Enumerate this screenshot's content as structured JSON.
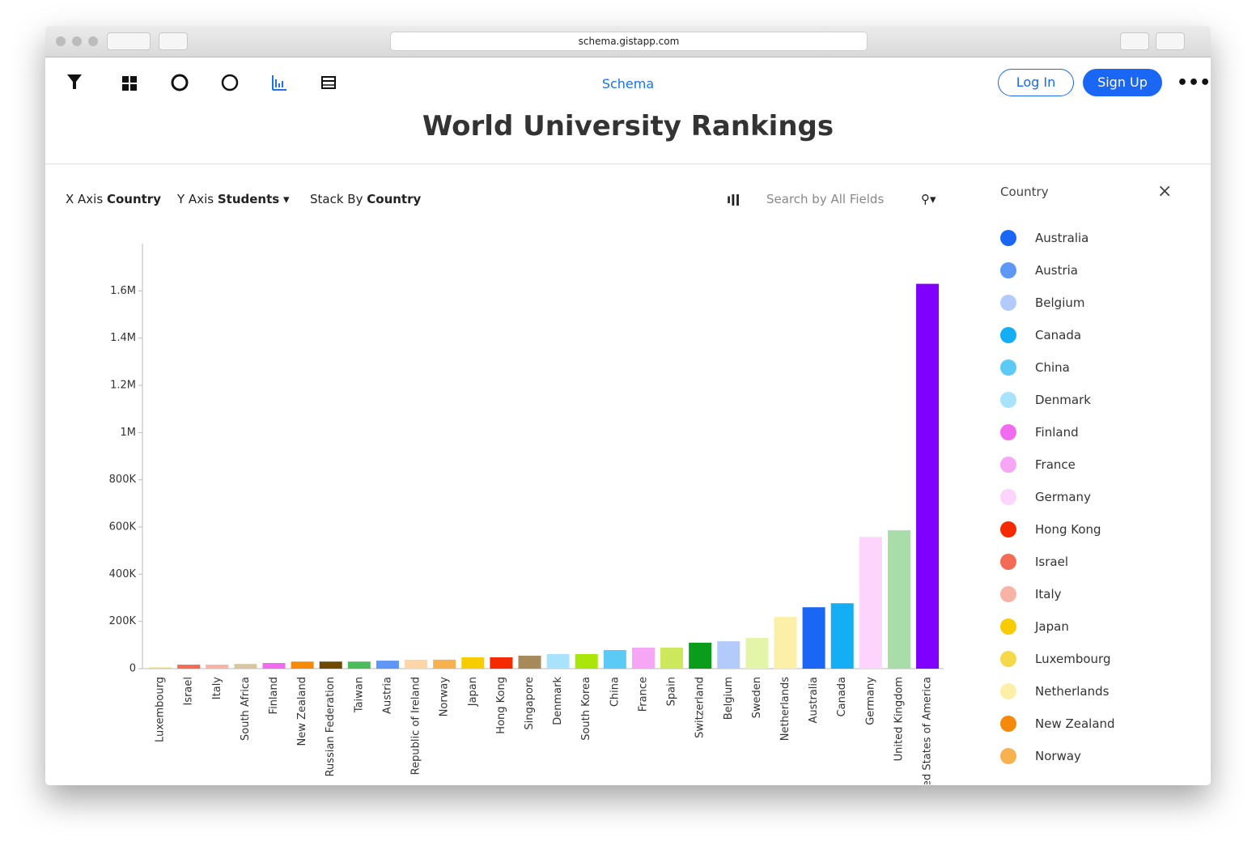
{
  "browser": {
    "url": "schema.gistapp.com"
  },
  "nav": {
    "brand": "Schema",
    "login": "Log In",
    "signup": "Sign Up"
  },
  "title": "World University Rankings",
  "controls": {
    "x_axis_label": "X Axis",
    "x_axis_value": "Country",
    "y_axis_label": "Y Axis",
    "y_axis_value": "Students",
    "stack_label": "Stack By",
    "stack_value": "Country",
    "search_placeholder": "Search by All Fields"
  },
  "legend": {
    "title": "Country",
    "items": [
      {
        "name": "Australia",
        "color": "#1a66f5"
      },
      {
        "name": "Austria",
        "color": "#5e97f5"
      },
      {
        "name": "Belgium",
        "color": "#b3cbfa"
      },
      {
        "name": "Canada",
        "color": "#14aef5"
      },
      {
        "name": "China",
        "color": "#5ccaf5"
      },
      {
        "name": "Denmark",
        "color": "#a9e3fb"
      },
      {
        "name": "Finland",
        "color": "#f06bf0"
      },
      {
        "name": "France",
        "color": "#f7a6f5"
      },
      {
        "name": "Germany",
        "color": "#fcd4fc"
      },
      {
        "name": "Hong Kong",
        "color": "#f52a00"
      },
      {
        "name": "Israel",
        "color": "#f26b55"
      },
      {
        "name": "Italy",
        "color": "#f7b4a6"
      },
      {
        "name": "Japan",
        "color": "#f7cc00"
      },
      {
        "name": "Luxembourg",
        "color": "#f5d94a"
      },
      {
        "name": "Netherlands",
        "color": "#fcefa8"
      },
      {
        "name": "New Zealand",
        "color": "#f5890b"
      },
      {
        "name": "Norway",
        "color": "#f7b14f"
      }
    ]
  },
  "chart_data": {
    "type": "bar",
    "categories": [
      "Luxembourg",
      "Israel",
      "Italy",
      "South Africa",
      "Finland",
      "New Zealand",
      "Russian Federation",
      "Taiwan",
      "Austria",
      "Republic of Ireland",
      "Norway",
      "Japan",
      "Hong Kong",
      "Singapore",
      "Denmark",
      "South Korea",
      "China",
      "France",
      "Spain",
      "Switzerland",
      "Belgium",
      "Sweden",
      "Netherlands",
      "Australia",
      "Canada",
      "Germany",
      "United Kingdom",
      "United States of America"
    ],
    "values": [
      5000,
      17000,
      17000,
      20000,
      24000,
      30000,
      30000,
      30000,
      34000,
      38000,
      38000,
      48000,
      48000,
      55000,
      62000,
      62000,
      79000,
      89000,
      89000,
      110000,
      116000,
      130000,
      219000,
      260000,
      277000,
      558000,
      586000,
      1630000
    ],
    "colors": [
      "#f5d94a",
      "#f26b55",
      "#f7b4a6",
      "#d6c7a0",
      "#f06bf0",
      "#f5890b",
      "#6e4a00",
      "#4dba5c",
      "#5e97f5",
      "#fdd6a8",
      "#f7b14f",
      "#f7cc00",
      "#f52a00",
      "#a68a5a",
      "#a9e3fb",
      "#abe60a",
      "#5ccaf5",
      "#f7a6f5",
      "#cde85a",
      "#0a9c1a",
      "#b3cbfa",
      "#e3f5a8",
      "#fcefa8",
      "#1a66f5",
      "#14aef5",
      "#fcd4fc",
      "#a8dca8",
      "#7f00ff"
    ],
    "ylim": [
      0,
      1800000
    ],
    "yticks": [
      0,
      {
        "value": 200000,
        "label": "200K"
      },
      {
        "value": 400000,
        "label": "400K"
      },
      {
        "value": 600000,
        "label": "600K"
      },
      {
        "value": 800000,
        "label": "800K"
      },
      {
        "value": 1000000,
        "label": "1M"
      },
      {
        "value": 1200000,
        "label": "1.2M"
      },
      {
        "value": 1400000,
        "label": "1.4M"
      },
      {
        "value": 1600000,
        "label": "1.6M"
      }
    ]
  }
}
